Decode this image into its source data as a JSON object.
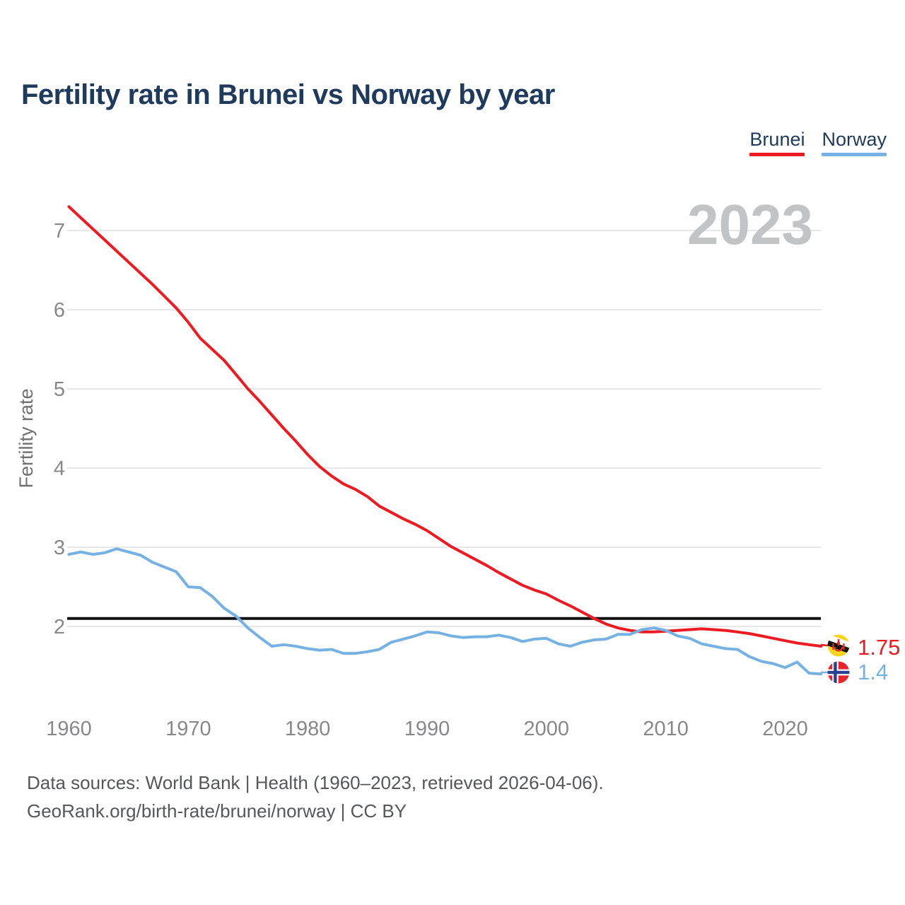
{
  "title": "Fertility rate in Brunei vs Norway by year",
  "watermark": "2023",
  "legend": {
    "items": [
      {
        "label": "Brunei",
        "color": "#ee1a21"
      },
      {
        "label": "Norway",
        "color": "#76b1e3"
      }
    ]
  },
  "end_labels": {
    "brunei": "1.75",
    "norway": "1.4"
  },
  "footer": {
    "line1": "Data sources: World Bank | Health (1960–2023, retrieved 2026-04-06).",
    "line2": "GeoRank.org/birth-rate/brunei/norway | CC BY"
  },
  "chart_data": {
    "type": "line",
    "title": "Fertility rate in Brunei vs Norway by year",
    "ylabel": "Fertility rate",
    "xlabel": "",
    "x_ticks": [
      1960,
      1970,
      1980,
      1990,
      2000,
      2010,
      2020
    ],
    "y_ticks": [
      2,
      3,
      4,
      5,
      6,
      7
    ],
    "ylim": [
      1.3,
      7.4
    ],
    "xlim": [
      1960,
      2023
    ],
    "grid": true,
    "legend_position": "top-right",
    "threshold": {
      "value": 2.1,
      "color": "#111111"
    },
    "x": [
      1960,
      1961,
      1962,
      1963,
      1964,
      1965,
      1966,
      1967,
      1968,
      1969,
      1970,
      1971,
      1972,
      1973,
      1974,
      1975,
      1976,
      1977,
      1978,
      1979,
      1980,
      1981,
      1982,
      1983,
      1984,
      1985,
      1986,
      1987,
      1988,
      1989,
      1990,
      1991,
      1992,
      1993,
      1994,
      1995,
      1996,
      1997,
      1998,
      1999,
      2000,
      2001,
      2002,
      2003,
      2004,
      2005,
      2006,
      2007,
      2008,
      2009,
      2010,
      2011,
      2012,
      2013,
      2014,
      2015,
      2016,
      2017,
      2018,
      2019,
      2020,
      2021,
      2022,
      2023
    ],
    "series": [
      {
        "name": "Brunei",
        "color": "#ee1a21",
        "values": [
          7.3,
          7.16,
          7.02,
          6.88,
          6.74,
          6.6,
          6.46,
          6.32,
          6.17,
          6.02,
          5.84,
          5.64,
          5.5,
          5.36,
          5.18,
          5.0,
          4.84,
          4.67,
          4.5,
          4.34,
          4.17,
          4.02,
          3.9,
          3.8,
          3.73,
          3.64,
          3.52,
          3.44,
          3.36,
          3.29,
          3.21,
          3.11,
          3.01,
          2.93,
          2.85,
          2.77,
          2.68,
          2.6,
          2.52,
          2.46,
          2.41,
          2.33,
          2.26,
          2.18,
          2.1,
          2.03,
          1.98,
          1.95,
          1.93,
          1.93,
          1.94,
          1.95,
          1.96,
          1.97,
          1.96,
          1.95,
          1.93,
          1.91,
          1.88,
          1.85,
          1.82,
          1.79,
          1.77,
          1.75
        ]
      },
      {
        "name": "Norway",
        "color": "#76b1e3",
        "values": [
          2.91,
          2.94,
          2.91,
          2.93,
          2.98,
          2.94,
          2.9,
          2.81,
          2.75,
          2.69,
          2.5,
          2.49,
          2.38,
          2.23,
          2.13,
          1.98,
          1.86,
          1.75,
          1.77,
          1.75,
          1.72,
          1.7,
          1.71,
          1.66,
          1.66,
          1.68,
          1.71,
          1.8,
          1.84,
          1.88,
          1.93,
          1.92,
          1.88,
          1.86,
          1.87,
          1.87,
          1.89,
          1.86,
          1.81,
          1.84,
          1.85,
          1.78,
          1.75,
          1.8,
          1.83,
          1.84,
          1.9,
          1.9,
          1.96,
          1.98,
          1.95,
          1.88,
          1.85,
          1.78,
          1.75,
          1.72,
          1.71,
          1.62,
          1.56,
          1.53,
          1.48,
          1.55,
          1.41,
          1.4
        ]
      }
    ],
    "end_values": {
      "Brunei": 1.75,
      "Norway": 1.4
    }
  }
}
